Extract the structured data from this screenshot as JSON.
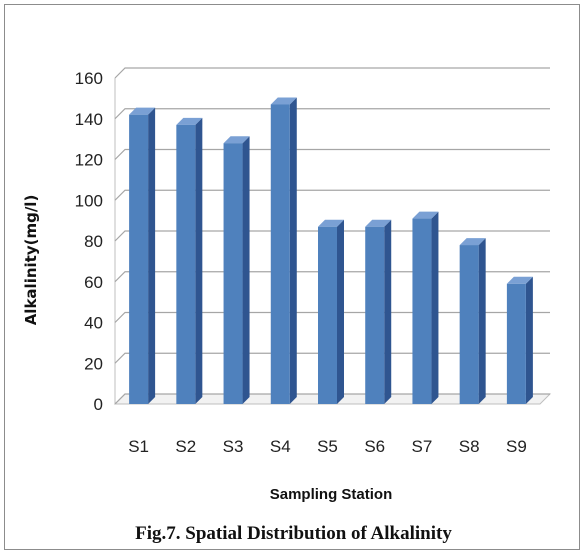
{
  "caption": "Fig.7. Spatial Distribution of Alkalinity",
  "chart_data": {
    "type": "bar",
    "categories": [
      "S1",
      "S2",
      "S3",
      "S4",
      "S5",
      "S6",
      "S7",
      "S8",
      "S9"
    ],
    "values": [
      142,
      137,
      128,
      147,
      87,
      87,
      91,
      78,
      59
    ],
    "xlabel": "Sampling Station",
    "ylabel": "Alkalinity(mg/l)",
    "ylim": [
      0,
      160
    ],
    "yticks": [
      0,
      20,
      40,
      60,
      80,
      100,
      120,
      140,
      160
    ],
    "grid": true,
    "three_d": true,
    "colors": {
      "bar_front": "#4f81bd",
      "bar_side": "#2f5590",
      "bar_top": "#7aa0d4",
      "grid": "#a6a6a6",
      "wall": "#bfbfbf"
    }
  }
}
